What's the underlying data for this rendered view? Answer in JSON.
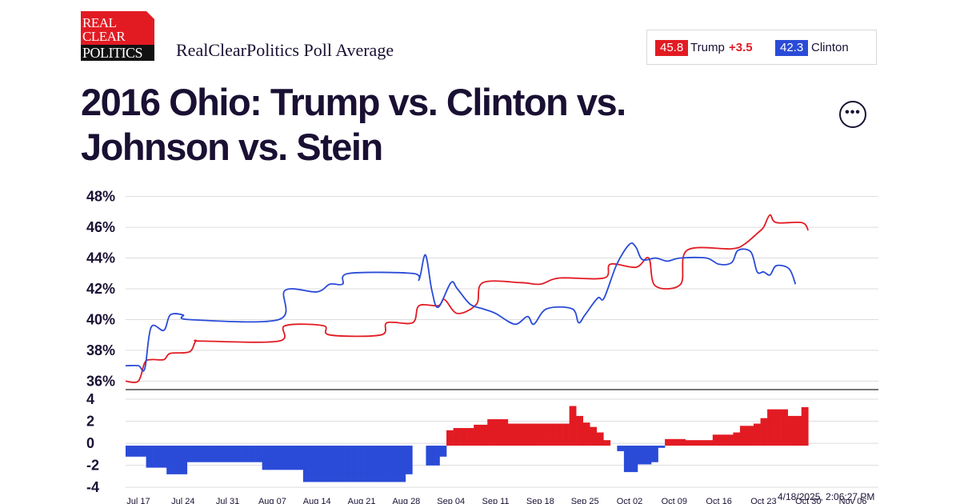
{
  "logo": {
    "line1": "REAL",
    "line2": "CLEAR",
    "line3": "POLITICS"
  },
  "subtitle": "RealClearPolitics Poll Average",
  "legend": {
    "trump": {
      "value": "45.8",
      "name": "Trump",
      "spread": "+3.5",
      "color": "#e21b23"
    },
    "clinton": {
      "value": "42.3",
      "name": "Clinton",
      "color": "#2a4bd7"
    }
  },
  "title": "2016 Ohio: Trump vs. Clinton vs. Johnson vs. Stein",
  "more_button": "•••",
  "timestamp": "4/18/2025, 2:06:27 PM",
  "chart_data": {
    "type": "line",
    "title": "2016 Ohio: Trump vs. Clinton vs. Johnson vs. Stein",
    "x_range_days": [
      0,
      118
    ],
    "x_ticks": [
      {
        "label": "Jul 17",
        "day": 2
      },
      {
        "label": "Jul 24",
        "day": 9
      },
      {
        "label": "Jul 31",
        "day": 16
      },
      {
        "label": "Aug 07",
        "day": 23
      },
      {
        "label": "Aug 14",
        "day": 30
      },
      {
        "label": "Aug 21",
        "day": 37
      },
      {
        "label": "Aug 28",
        "day": 44
      },
      {
        "label": "Sep 04",
        "day": 51
      },
      {
        "label": "Sep 11",
        "day": 58
      },
      {
        "label": "Sep 18",
        "day": 65
      },
      {
        "label": "Sep 25",
        "day": 72
      },
      {
        "label": "Oct 02",
        "day": 79
      },
      {
        "label": "Oct 09",
        "day": 86
      },
      {
        "label": "Oct 16",
        "day": 93
      },
      {
        "label": "Oct 23",
        "day": 100
      },
      {
        "label": "Oct 30",
        "day": 107
      },
      {
        "label": "Nov 06",
        "day": 114
      }
    ],
    "ylim": [
      35.5,
      48.5
    ],
    "y_ticks": [
      "48%",
      "46%",
      "44%",
      "42%",
      "40%",
      "38%",
      "36%"
    ],
    "y_tick_values": [
      48,
      46,
      44,
      42,
      40,
      38,
      36
    ],
    "series": [
      {
        "name": "Trump",
        "color": "#e21b23",
        "points": [
          [
            0,
            36.0
          ],
          [
            2,
            36.0
          ],
          [
            3,
            37.2
          ],
          [
            4,
            37.4
          ],
          [
            6,
            37.4
          ],
          [
            7,
            37.8
          ],
          [
            10,
            37.9
          ],
          [
            11,
            38.6
          ],
          [
            12,
            38.6
          ],
          [
            24,
            38.6
          ],
          [
            25,
            39.6
          ],
          [
            31,
            39.6
          ],
          [
            32,
            39.0
          ],
          [
            40,
            39.0
          ],
          [
            41,
            39.8
          ],
          [
            45,
            39.8
          ],
          [
            46,
            40.9
          ],
          [
            49,
            40.9
          ],
          [
            50,
            41.3
          ],
          [
            52,
            40.4
          ],
          [
            55,
            41.0
          ],
          [
            56,
            42.4
          ],
          [
            62,
            42.4
          ],
          [
            65,
            42.3
          ],
          [
            68,
            42.7
          ],
          [
            75,
            42.7
          ],
          [
            76,
            43.6
          ],
          [
            80,
            43.4
          ],
          [
            82,
            44.0
          ],
          [
            83,
            42.2
          ],
          [
            87,
            42.3
          ],
          [
            88,
            44.5
          ],
          [
            95,
            44.6
          ],
          [
            97,
            44.9
          ],
          [
            99,
            45.6
          ],
          [
            100,
            46.0
          ],
          [
            101,
            46.8
          ],
          [
            102,
            46.3
          ],
          [
            106,
            46.3
          ],
          [
            107,
            45.8
          ]
        ]
      },
      {
        "name": "Clinton",
        "color": "#2a4bd7",
        "points": [
          [
            0,
            37.0
          ],
          [
            2,
            37.0
          ],
          [
            3,
            36.8
          ],
          [
            4,
            39.5
          ],
          [
            6,
            39.3
          ],
          [
            7,
            40.3
          ],
          [
            9,
            40.3
          ],
          [
            10,
            40.0
          ],
          [
            24,
            40.0
          ],
          [
            25,
            41.9
          ],
          [
            30,
            41.8
          ],
          [
            32,
            42.3
          ],
          [
            34,
            42.3
          ],
          [
            35,
            43.0
          ],
          [
            45,
            43.0
          ],
          [
            46,
            42.6
          ],
          [
            47,
            44.2
          ],
          [
            48,
            41.9
          ],
          [
            49,
            40.8
          ],
          [
            51,
            42.4
          ],
          [
            52,
            42.0
          ],
          [
            54,
            41.0
          ],
          [
            56,
            40.7
          ],
          [
            58,
            40.4
          ],
          [
            61,
            39.7
          ],
          [
            63,
            40.2
          ],
          [
            64,
            39.7
          ],
          [
            66,
            40.7
          ],
          [
            70,
            40.7
          ],
          [
            71,
            39.8
          ],
          [
            72,
            40.3
          ],
          [
            74,
            41.4
          ],
          [
            75,
            41.4
          ],
          [
            77,
            43.6
          ],
          [
            79,
            44.9
          ],
          [
            80,
            44.7
          ],
          [
            81,
            43.9
          ],
          [
            83,
            44.0
          ],
          [
            84,
            43.9
          ],
          [
            85,
            43.8
          ],
          [
            87,
            44.0
          ],
          [
            91,
            44.0
          ],
          [
            93,
            43.6
          ],
          [
            95,
            43.7
          ],
          [
            96,
            44.5
          ],
          [
            98,
            44.4
          ],
          [
            99,
            43.1
          ],
          [
            100,
            43.1
          ],
          [
            101,
            42.9
          ],
          [
            102,
            43.5
          ],
          [
            104,
            43.3
          ],
          [
            105,
            42.3
          ]
        ]
      }
    ],
    "spread_panel": {
      "type": "bar",
      "ylim": [
        -4.5,
        4.8
      ],
      "y_ticks": [
        "4",
        "2",
        "0",
        "-2",
        "-4"
      ],
      "y_tick_values": [
        4,
        2,
        0,
        -2,
        -4
      ],
      "values": [
        -1,
        -1,
        -1,
        -2,
        -2,
        -2,
        -2.6,
        -2.6,
        -2.6,
        -1.5,
        -1.5,
        -1.5,
        -1.5,
        -1.5,
        -1.5,
        -1.5,
        -1.5,
        -1.5,
        -1.5,
        -1.5,
        -2.2,
        -2.2,
        -2.2,
        -2.2,
        -2.2,
        -2.2,
        -3.3,
        -3.3,
        -3.3,
        -3.3,
        -3.3,
        -3.3,
        -3.3,
        -3.3,
        -3.3,
        -3.3,
        -3.3,
        -3.3,
        -3.3,
        -3.3,
        -3.3,
        -2.6,
        0,
        0,
        -1.8,
        -1.8,
        -1,
        1.4,
        1.6,
        1.6,
        1.6,
        1.9,
        1.9,
        2.4,
        2.4,
        2.4,
        2.0,
        2.0,
        2.0,
        2.0,
        2.0,
        2.0,
        2.0,
        2.0,
        2.0,
        3.6,
        2.7,
        2.1,
        1.7,
        1.2,
        0.5,
        0,
        -0.5,
        -2.4,
        -2.4,
        -1.7,
        -1.7,
        -1.5,
        -0.2,
        0.6,
        0.6,
        0.6,
        0.5,
        0.5,
        0.5,
        0.5,
        1.0,
        1.0,
        1.0,
        1.2,
        1.8,
        1.8,
        2.0,
        2.5,
        3.3,
        3.3,
        3.3,
        2.7,
        2.7,
        3.5
      ],
      "colors": {
        "positive": "#e21b23",
        "negative": "#2a4bd7"
      }
    }
  }
}
